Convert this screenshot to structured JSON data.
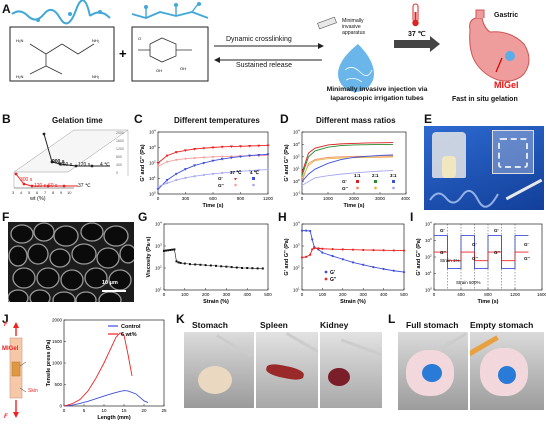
{
  "panels": {
    "A": {
      "letter": "A",
      "arrow_top": "Dynamic crosslinking",
      "arrow_bottom": "Sustained release",
      "apparatus": "Minimally invasive apparatus",
      "injection": "Minimally invasive injection via laparoscopic irrigation tubes",
      "temp": "37 ℃",
      "organ": "Gastric",
      "gel": "MIGel",
      "fast": "Fast in situ gelation"
    },
    "B": {
      "letter": "B",
      "title": "Gelation time",
      "xlabel": "wt (%)",
      "annot": [
        "900 s",
        "360 s",
        "120 s",
        "4 ℃",
        "300 s",
        "120 s",
        "60 s",
        "37 ℃"
      ]
    },
    "C": {
      "letter": "C",
      "title": "Different temperatures",
      "xlabel": "Time (s)",
      "ylabel": "G' and G'' (Pa)",
      "legend": {
        "col1": "37 ℃",
        "col2": "4 ℃",
        "row1": "G'",
        "row2": "G''"
      }
    },
    "D": {
      "letter": "D",
      "title": "Different mass ratios",
      "xlabel": "Time (s)",
      "ylabel": "G' and G'' (Pa)",
      "legend": {
        "c1": "1:1",
        "c2": "2:1",
        "c3": "3:1",
        "row1": "G'",
        "row2": "G''"
      }
    },
    "E": {
      "letter": "E"
    },
    "F": {
      "letter": "F",
      "scale": "10 μm"
    },
    "G": {
      "letter": "G",
      "xlabel": "Strain (%)",
      "ylabel": "Viscosity (Pa·s)"
    },
    "H": {
      "letter": "H",
      "xlabel": "Strain (%)",
      "ylabel": "G' and G'' (Pa)",
      "leg1": "G'",
      "leg2": "G''"
    },
    "I": {
      "letter": "I",
      "xlabel": "Time (s)",
      "ylabel": "G' and G'' (Pa)",
      "s1": "Strain 1%",
      "s2": "Strain 500%",
      "labels": [
        "G'",
        "G''",
        "G'",
        "G''",
        "G'",
        "G''",
        "G'",
        "G''"
      ]
    },
    "J": {
      "letter": "J",
      "xlabel": "Length (mm)",
      "ylabel": "Tensile press (Pa)",
      "migel": "MIGel",
      "skin": "Skin",
      "F": "F",
      "series1": "Control",
      "series2": "6 wt%"
    },
    "K": {
      "letter": "K",
      "c1": "Stomach",
      "c2": "Spleen",
      "c3": "Kidney"
    },
    "L": {
      "letter": "L",
      "c1": "Full stomach",
      "c2": "Empty stomach"
    }
  },
  "chart_data": [
    {
      "panel": "B",
      "type": "line",
      "title": "Gelation time",
      "xlabel": "wt (%)",
      "ylabel": "",
      "x": [
        3,
        4,
        5,
        6,
        7,
        8,
        9,
        10
      ],
      "series": [
        {
          "name": "4 ℃",
          "values": [
            1800,
            900,
            360,
            120,
            100,
            90,
            80,
            70
          ]
        },
        {
          "name": "37 ℃",
          "values": [
            600,
            300,
            120,
            60,
            50,
            45,
            40,
            35
          ]
        }
      ],
      "xlim": [
        3,
        10
      ],
      "ylim": [
        0,
        2000
      ]
    },
    {
      "panel": "C",
      "type": "scatter",
      "title": "Different temperatures",
      "xlabel": "Time (s)",
      "ylabel": "G' and G'' (Pa)",
      "yscale": "log",
      "xlim": [
        0,
        1200
      ],
      "ylim": [
        1,
        10000
      ],
      "x_ticks": [
        0,
        300,
        600,
        900,
        1200
      ],
      "series": [
        {
          "name": "G' 37 ℃",
          "x": [
            0,
            100,
            200,
            300,
            400,
            500,
            600,
            700,
            800,
            900,
            1000,
            1100,
            1200
          ],
          "values": [
            100,
            300,
            500,
            650,
            800,
            900,
            1000,
            1100,
            1150,
            1200,
            1250,
            1300,
            1350
          ]
        },
        {
          "name": "G'' 37 ℃",
          "x": [
            0,
            100,
            200,
            300,
            400,
            500,
            600,
            700,
            800,
            900,
            1000,
            1100,
            1200
          ],
          "values": [
            60,
            120,
            160,
            190,
            210,
            230,
            250,
            260,
            270,
            280,
            290,
            300,
            310
          ]
        },
        {
          "name": "G' 4 ℃",
          "x": [
            0,
            100,
            200,
            300,
            400,
            500,
            600,
            700,
            800,
            900,
            1000,
            1100,
            1200
          ],
          "values": [
            2,
            8,
            20,
            40,
            70,
            100,
            140,
            180,
            220,
            260,
            300,
            330,
            360
          ]
        },
        {
          "name": "G'' 4 ℃",
          "x": [
            0,
            100,
            200,
            300,
            400,
            500,
            600,
            700,
            800,
            900,
            1000,
            1100,
            1200
          ],
          "values": [
            3,
            5,
            8,
            11,
            14,
            17,
            20,
            23,
            26,
            29,
            32,
            35,
            38
          ]
        }
      ]
    },
    {
      "panel": "D",
      "type": "line",
      "title": "Different mass ratios",
      "xlabel": "Time (s)",
      "ylabel": "G' and G'' (Pa)",
      "yscale": "log",
      "xlim": [
        0,
        4000
      ],
      "ylim": [
        0.1,
        10000
      ],
      "x_ticks": [
        0,
        1000,
        2000,
        3000,
        4000
      ],
      "series": [
        {
          "name": "G' 1:1",
          "x": [
            0,
            250,
            500,
            1000,
            1500,
            2000,
            2500,
            3000,
            3500
          ],
          "values": [
            5,
            200,
            500,
            900,
            1100,
            1200,
            1300,
            1350,
            1400
          ]
        },
        {
          "name": "G'' 1:1",
          "x": [
            0,
            250,
            500,
            1000,
            1500,
            2000,
            2500,
            3000,
            3500
          ],
          "values": [
            1,
            30,
            60,
            90,
            100,
            110,
            110,
            115,
            115
          ]
        },
        {
          "name": "G' 2:1",
          "x": [
            0,
            250,
            500,
            1000,
            1500,
            2000,
            2500,
            3000,
            3500
          ],
          "values": [
            3,
            100,
            300,
            600,
            800,
            900,
            950,
            1000,
            1000
          ]
        },
        {
          "name": "G'' 2:1",
          "x": [
            0,
            250,
            500,
            1000,
            1500,
            2000,
            2500,
            3000,
            3500
          ],
          "values": [
            2,
            20,
            50,
            70,
            80,
            85,
            90,
            90,
            95
          ]
        },
        {
          "name": "G' 3:1",
          "x": [
            0,
            250,
            500,
            1000,
            1500,
            2000,
            2500,
            3000,
            3500
          ],
          "values": [
            1,
            4,
            10,
            30,
            60,
            90,
            110,
            130,
            140
          ]
        },
        {
          "name": "G'' 3:1",
          "x": [
            0,
            250,
            500,
            1000,
            1500,
            2000,
            2500,
            3000,
            3500
          ],
          "values": [
            0.5,
            1,
            2,
            3,
            4,
            5,
            6,
            7,
            8
          ]
        }
      ]
    },
    {
      "panel": "G",
      "type": "scatter",
      "xlabel": "Strain (%)",
      "ylabel": "Viscosity (Pa·s)",
      "yscale": "log",
      "xlim": [
        0,
        500
      ],
      "ylim": [
        10,
        10000
      ],
      "x_ticks": [
        0,
        100,
        200,
        300,
        400,
        500
      ],
      "x": [
        0,
        10,
        20,
        30,
        40,
        50,
        60,
        70,
        80,
        100,
        125,
        150,
        175,
        200,
        225,
        250,
        275,
        300,
        325,
        350,
        375,
        400,
        425,
        450,
        475
      ],
      "values": [
        600,
        620,
        640,
        660,
        680,
        700,
        200,
        180,
        170,
        160,
        150,
        145,
        140,
        135,
        130,
        125,
        120,
        115,
        110,
        105,
        100,
        100,
        98,
        96,
        95
      ]
    },
    {
      "panel": "H",
      "type": "line",
      "xlabel": "Strain (%)",
      "ylabel": "G' and G'' (Pa)",
      "yscale": "log",
      "xlim": [
        0,
        500
      ],
      "ylim": [
        10,
        10000
      ],
      "x_ticks": [
        0,
        100,
        200,
        300,
        400,
        500
      ],
      "series": [
        {
          "name": "G'",
          "x": [
            0,
            20,
            40,
            50,
            60,
            80,
            100,
            150,
            200,
            250,
            300,
            350,
            400,
            450,
            500
          ],
          "values": [
            5000,
            5000,
            4800,
            2000,
            900,
            700,
            500,
            350,
            250,
            180,
            140,
            110,
            90,
            75,
            65
          ]
        },
        {
          "name": "G''",
          "x": [
            0,
            20,
            40,
            50,
            60,
            80,
            100,
            150,
            200,
            250,
            300,
            350,
            400,
            450,
            500
          ],
          "values": [
            300,
            320,
            400,
            700,
            800,
            780,
            750,
            720,
            700,
            680,
            660,
            650,
            640,
            630,
            620
          ]
        }
      ]
    },
    {
      "panel": "I",
      "type": "line",
      "xlabel": "Time (s)",
      "ylabel": "G' and G'' (Pa)",
      "yscale": "log",
      "xlim": [
        0,
        1600
      ],
      "ylim": [
        1,
        10000
      ],
      "x_ticks": [
        0,
        400,
        800,
        1200,
        1600
      ],
      "series": [
        {
          "name": "G'",
          "x": [
            0,
            200,
            200,
            400,
            400,
            600,
            600,
            800,
            800,
            1000,
            1000,
            1200,
            1200,
            1400
          ],
          "values": [
            2000,
            2000,
            20,
            20,
            2000,
            2000,
            20,
            20,
            2000,
            2000,
            20,
            20,
            2000,
            2000
          ]
        },
        {
          "name": "G''",
          "x": [
            0,
            200,
            200,
            400,
            400,
            600,
            600,
            800,
            800,
            1000,
            1000,
            1200,
            1200,
            1400
          ],
          "values": [
            200,
            200,
            60,
            60,
            200,
            200,
            60,
            60,
            200,
            200,
            60,
            60,
            200,
            200
          ]
        }
      ]
    },
    {
      "panel": "J",
      "type": "line",
      "xlabel": "Length (mm)",
      "ylabel": "Tensile press (Pa)",
      "xlim": [
        0,
        25
      ],
      "ylim": [
        0,
        2000
      ],
      "x_ticks": [
        0,
        5,
        10,
        15,
        20,
        25
      ],
      "y_ticks": [
        0,
        500,
        1000,
        1500,
        2000
      ],
      "series": [
        {
          "name": "Control",
          "x": [
            0,
            2,
            4,
            6,
            8,
            10,
            12,
            14,
            15,
            16,
            18,
            20,
            21
          ],
          "values": [
            0,
            20,
            60,
            110,
            170,
            230,
            290,
            340,
            360,
            350,
            280,
            120,
            80
          ]
        },
        {
          "name": "6 wt%",
          "x": [
            0,
            2,
            4,
            6,
            8,
            10,
            12,
            13,
            14,
            15,
            16,
            17
          ],
          "values": [
            0,
            50,
            150,
            350,
            650,
            1000,
            1400,
            1600,
            1700,
            1650,
            1200,
            700
          ]
        }
      ]
    }
  ]
}
